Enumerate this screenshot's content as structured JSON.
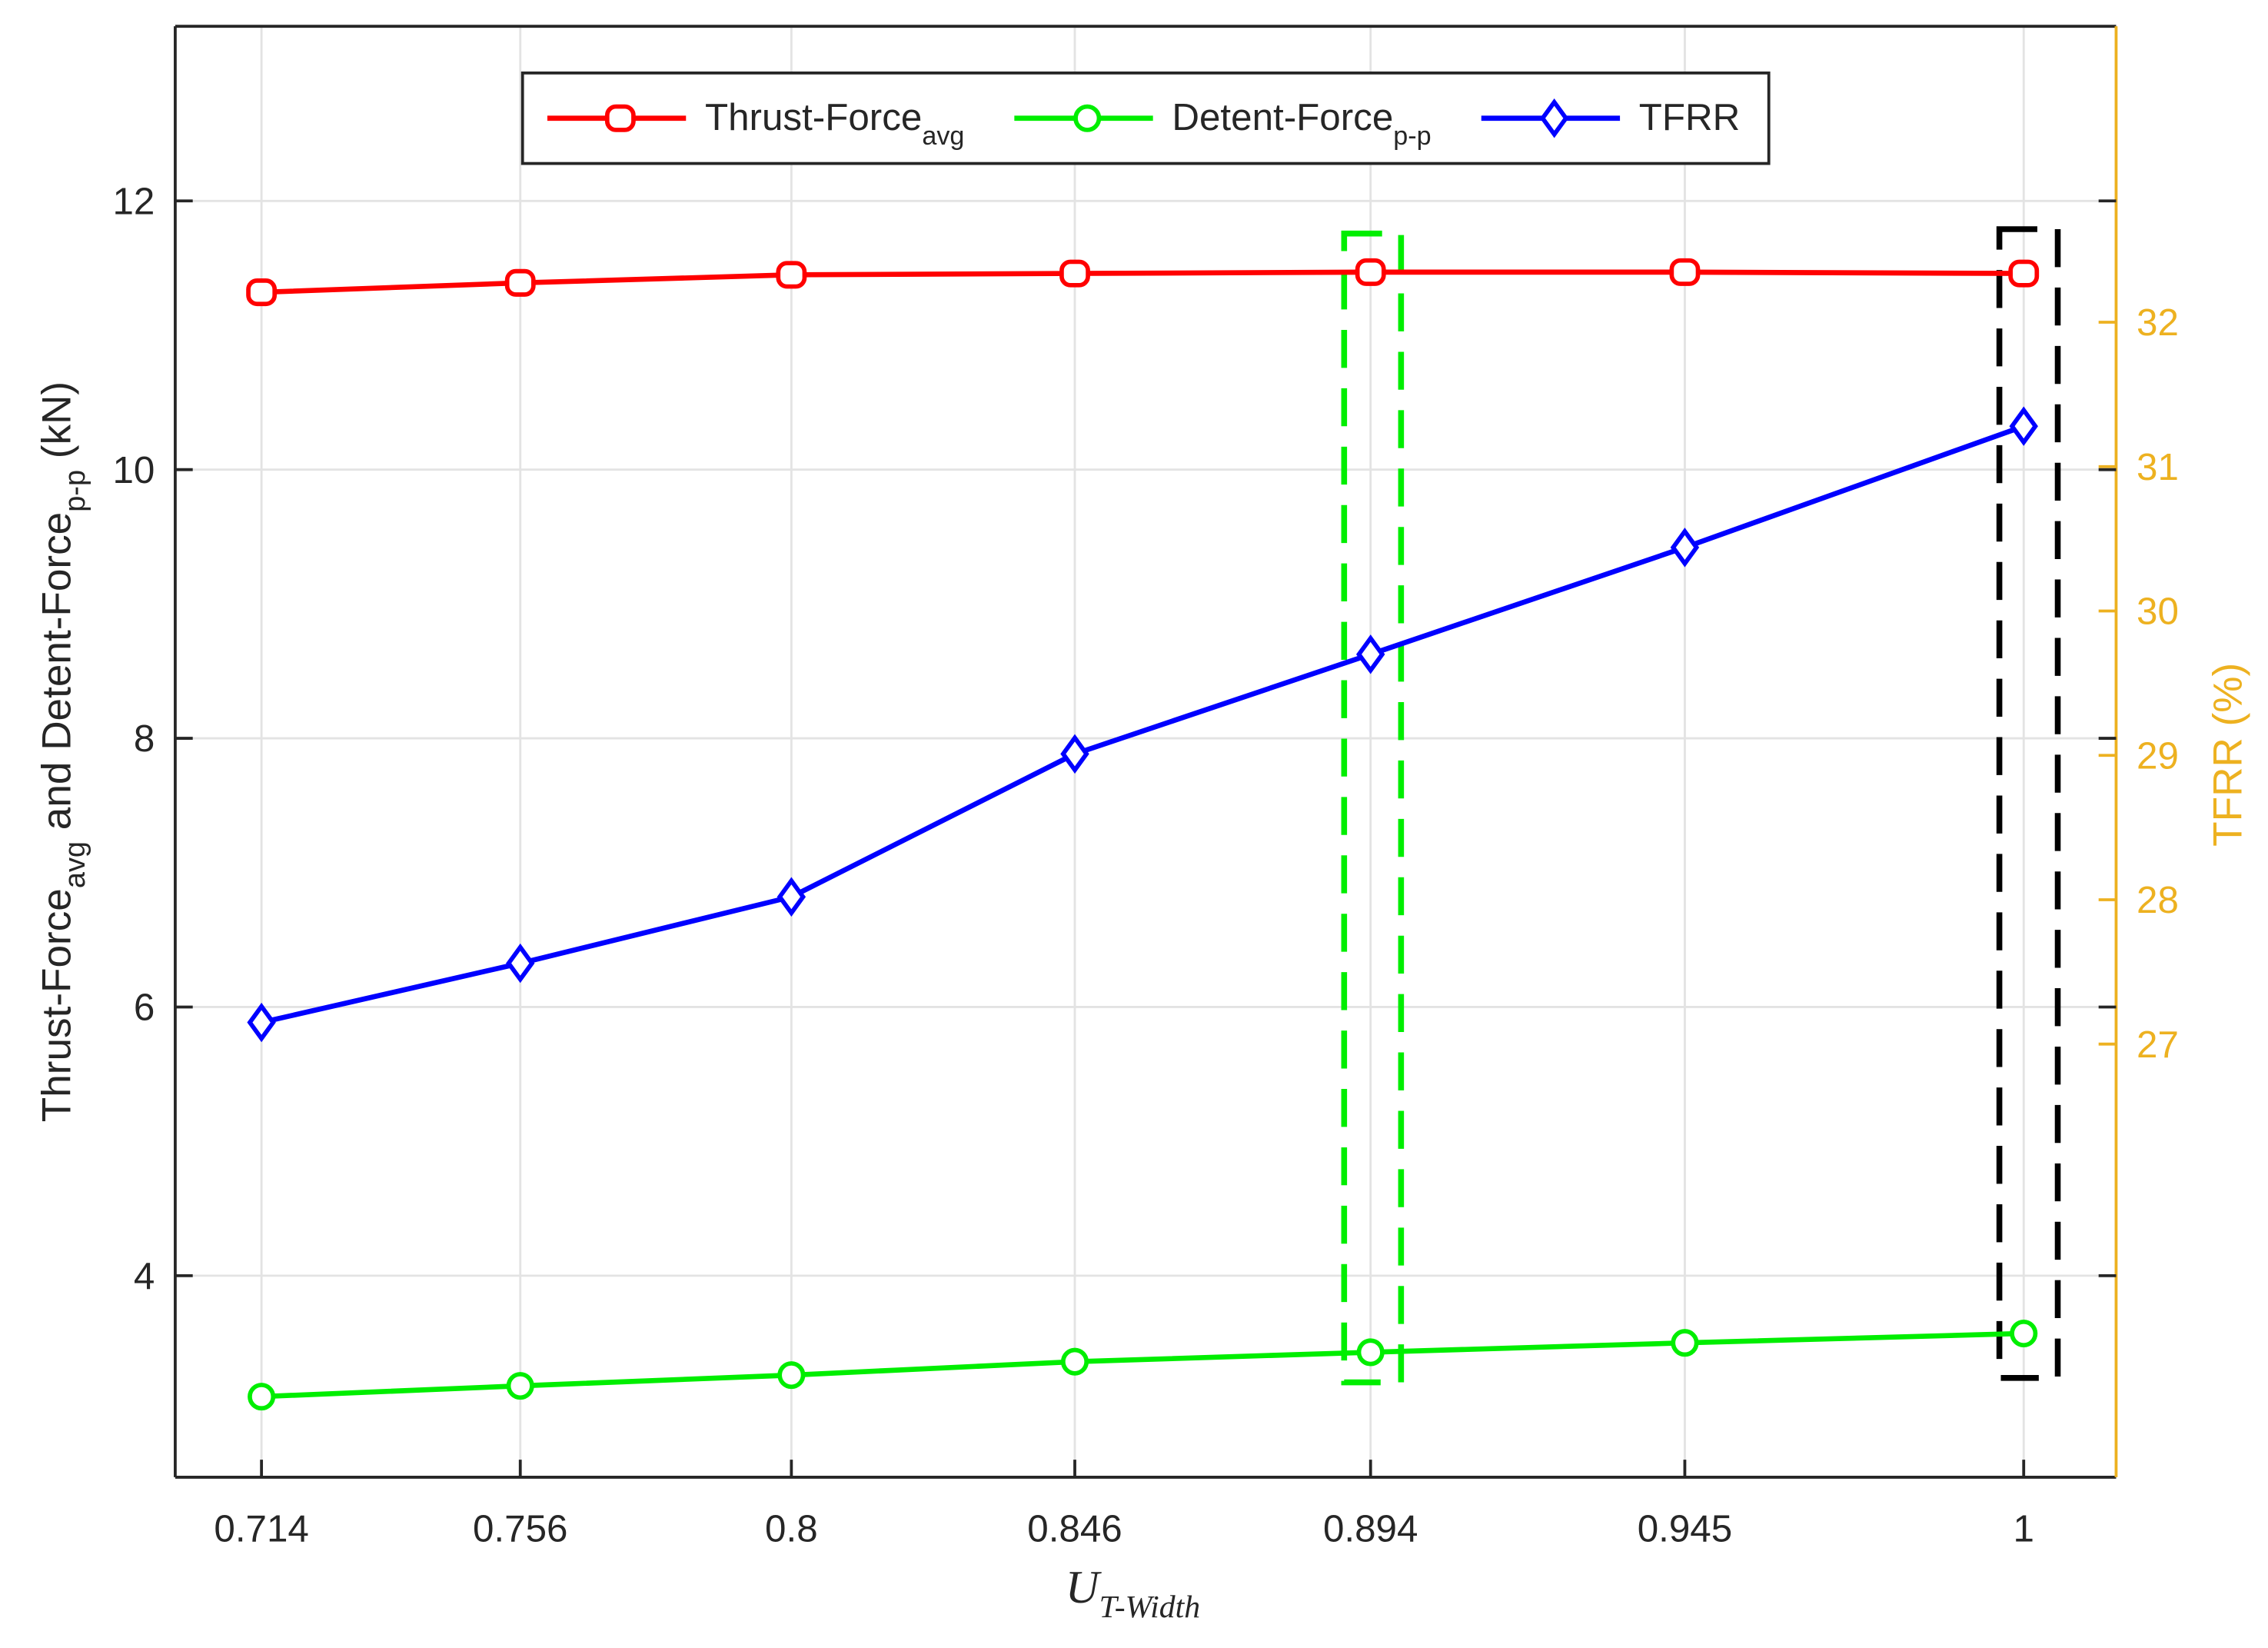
{
  "chart_data": {
    "type": "line",
    "x": [
      0.714,
      0.756,
      0.8,
      0.846,
      0.894,
      0.945,
      1
    ],
    "xlim": [
      0.7,
      1.015
    ],
    "xticks": [
      0.714,
      0.756,
      0.8,
      0.846,
      0.894,
      0.945,
      1
    ],
    "ylim": [
      2.5,
      13.3
    ],
    "yticks": [
      4,
      6,
      8,
      10,
      12
    ],
    "y2lim": [
      24.0,
      34.05
    ],
    "y2ticks": [
      27,
      28,
      29,
      30,
      31,
      32
    ],
    "grid": true,
    "legend": "top",
    "xlabel": {
      "main": "U",
      "sub": "T-Width"
    },
    "ylabel": [
      {
        "text": "Thrust-Force"
      },
      {
        "text": "avg",
        "sub": true
      },
      {
        "text": " and Detent-Force"
      },
      {
        "text": "p-p",
        "sub": true
      },
      {
        "text": " (kN)"
      }
    ],
    "y2label": "TFRR (%)",
    "y2color": "#edb120",
    "series": [
      {
        "name": "Thrust-Force",
        "name_sub": "avg",
        "color": "#ff0000",
        "marker": "square",
        "values": [
          11.32,
          11.39,
          11.45,
          11.46,
          11.47,
          11.47,
          11.46
        ]
      },
      {
        "name": "Detent-Force",
        "name_sub": "p-p",
        "color": "#00ee00",
        "marker": "circle",
        "values": [
          3.1,
          3.18,
          3.26,
          3.36,
          3.43,
          3.5,
          3.57
        ]
      },
      {
        "name": "TFRR",
        "color": "#0000ff",
        "marker": "diamond",
        "axis": "y2",
        "values": [
          27.15,
          27.56,
          28.02,
          29.01,
          29.7,
          30.44,
          31.28
        ]
      }
    ]
  }
}
